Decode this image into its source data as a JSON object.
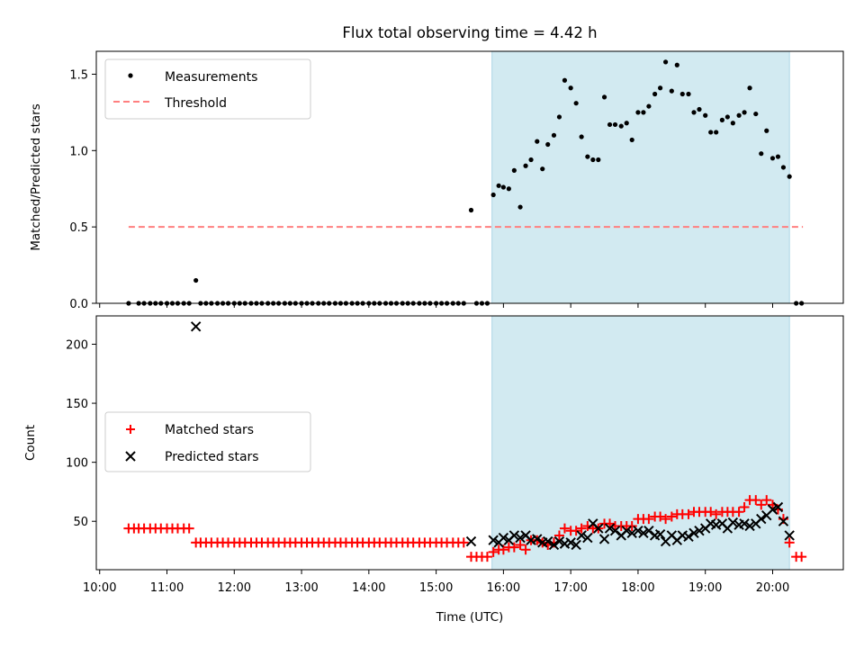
{
  "chart_data": [
    {
      "type": "scatter",
      "title": "Flux total observing time = 4.42 h",
      "ylabel": "Matched/Predicted stars",
      "ylim": [
        0,
        1.65
      ],
      "yticks": [
        0.0,
        0.5,
        1.0,
        1.5
      ],
      "ytick_labels": [
        "0.0",
        "0.5",
        "1.0",
        "1.5"
      ],
      "xlim_hours": [
        9.95,
        21.05
      ],
      "xticks_hours": [
        10,
        11,
        12,
        13,
        14,
        15,
        16,
        17,
        18,
        19,
        20
      ],
      "observing_window_hours": [
        15.83,
        20.25
      ],
      "threshold": {
        "label": "Threshold",
        "value": 0.5,
        "x_range_hours": [
          10.43,
          20.45
        ],
        "color": "#ff7f7f"
      },
      "measurement_color": "#000000",
      "shade_color": "#add8e6",
      "legend": [
        "Measurements",
        "Threshold"
      ],
      "legend_loc": "upper-left",
      "measurements": {
        "x": [
          10.43,
          10.58,
          10.66,
          10.75,
          10.83,
          10.91,
          11.0,
          11.08,
          11.16,
          11.25,
          11.33,
          11.43,
          11.5,
          11.58,
          11.66,
          11.75,
          11.83,
          11.91,
          12.0,
          12.08,
          12.16,
          12.25,
          12.33,
          12.41,
          12.5,
          12.58,
          12.66,
          12.75,
          12.83,
          12.91,
          13.0,
          13.08,
          13.16,
          13.25,
          13.33,
          13.41,
          13.5,
          13.58,
          13.66,
          13.75,
          13.83,
          13.91,
          14.0,
          14.08,
          14.16,
          14.25,
          14.33,
          14.41,
          14.5,
          14.58,
          14.66,
          14.75,
          14.83,
          14.91,
          15.0,
          15.08,
          15.16,
          15.25,
          15.33,
          15.41,
          15.52,
          15.6,
          15.68,
          15.76,
          15.85,
          15.93,
          16.0,
          16.08,
          16.16,
          16.25,
          16.33,
          16.41,
          16.5,
          16.58,
          16.66,
          16.75,
          16.83,
          16.91,
          17.0,
          17.08,
          17.16,
          17.25,
          17.33,
          17.41,
          17.5,
          17.58,
          17.66,
          17.75,
          17.83,
          17.91,
          18.0,
          18.08,
          18.16,
          18.25,
          18.33,
          18.41,
          18.5,
          18.58,
          18.66,
          18.75,
          18.83,
          18.91,
          19.0,
          19.08,
          19.16,
          19.25,
          19.33,
          19.41,
          19.5,
          19.58,
          19.66,
          19.75,
          19.83,
          19.91,
          20.0,
          20.08,
          20.16,
          20.25,
          20.35,
          20.43
        ],
        "y": [
          0,
          0,
          0,
          0,
          0,
          0,
          0,
          0,
          0,
          0,
          0,
          0.15,
          0,
          0,
          0,
          0,
          0,
          0,
          0,
          0,
          0,
          0,
          0,
          0,
          0,
          0,
          0,
          0,
          0,
          0,
          0,
          0,
          0,
          0,
          0,
          0,
          0,
          0,
          0,
          0,
          0,
          0,
          0,
          0,
          0,
          0,
          0,
          0,
          0,
          0,
          0,
          0,
          0,
          0,
          0,
          0,
          0,
          0,
          0,
          0,
          0.61,
          0,
          0,
          0,
          0.71,
          0.77,
          0.76,
          0.75,
          0.87,
          0.63,
          0.9,
          0.94,
          1.06,
          0.88,
          1.04,
          1.1,
          1.22,
          1.46,
          1.41,
          1.31,
          1.09,
          0.96,
          0.94,
          0.94,
          1.35,
          1.17,
          1.17,
          1.16,
          1.18,
          1.07,
          1.25,
          1.25,
          1.29,
          1.37,
          1.41,
          1.58,
          1.39,
          1.56,
          1.37,
          1.37,
          1.25,
          1.27,
          1.23,
          1.12,
          1.12,
          1.2,
          1.22,
          1.18,
          1.23,
          1.25,
          1.41,
          1.24,
          0.98,
          1.13,
          0.95,
          0.96,
          0.89,
          0.83,
          0,
          0
        ]
      }
    },
    {
      "type": "scatter",
      "xlabel": "Time (UTC)",
      "ylabel": "Count",
      "ylim": [
        9,
        224
      ],
      "yticks": [
        50,
        100,
        150,
        200
      ],
      "ytick_labels": [
        "50",
        "100",
        "150",
        "200"
      ],
      "xlim_hours": [
        9.95,
        21.05
      ],
      "xticks_hours": [
        10,
        11,
        12,
        13,
        14,
        15,
        16,
        17,
        18,
        19,
        20
      ],
      "xtick_labels": [
        "10:00",
        "11:00",
        "12:00",
        "13:00",
        "14:00",
        "15:00",
        "16:00",
        "17:00",
        "18:00",
        "19:00",
        "20:00"
      ],
      "observing_window_hours": [
        15.83,
        20.25
      ],
      "legend": [
        "Matched stars",
        "Predicted stars"
      ],
      "legend_loc": "center-left",
      "series": [
        {
          "name": "Matched stars",
          "marker": "+",
          "color": "#ff0000",
          "x": [
            10.43,
            10.51,
            10.58,
            10.66,
            10.75,
            10.83,
            10.91,
            11.0,
            11.08,
            11.16,
            11.25,
            11.33,
            11.43,
            11.5,
            11.58,
            11.66,
            11.75,
            11.83,
            11.91,
            12.0,
            12.08,
            12.16,
            12.25,
            12.33,
            12.41,
            12.5,
            12.58,
            12.66,
            12.75,
            12.83,
            12.91,
            13.0,
            13.08,
            13.16,
            13.25,
            13.33,
            13.41,
            13.5,
            13.58,
            13.66,
            13.75,
            13.83,
            13.91,
            14.0,
            14.08,
            14.16,
            14.25,
            14.33,
            14.41,
            14.5,
            14.58,
            14.66,
            14.75,
            14.83,
            14.91,
            15.0,
            15.08,
            15.16,
            15.25,
            15.33,
            15.41,
            15.52,
            15.6,
            15.68,
            15.76,
            15.85,
            15.93,
            16.0,
            16.08,
            16.16,
            16.25,
            16.33,
            16.41,
            16.5,
            16.58,
            16.66,
            16.75,
            16.83,
            16.91,
            17.0,
            17.08,
            17.16,
            17.25,
            17.33,
            17.41,
            17.5,
            17.58,
            17.66,
            17.75,
            17.83,
            17.91,
            18.0,
            18.08,
            18.16,
            18.25,
            18.33,
            18.41,
            18.5,
            18.58,
            18.66,
            18.75,
            18.83,
            18.91,
            19.0,
            19.08,
            19.16,
            19.25,
            19.33,
            19.41,
            19.5,
            19.58,
            19.66,
            19.75,
            19.83,
            19.91,
            20.0,
            20.08,
            20.16,
            20.25,
            20.35,
            20.43
          ],
          "y": [
            44,
            44,
            44,
            44,
            44,
            44,
            44,
            44,
            44,
            44,
            44,
            44,
            32,
            32,
            32,
            32,
            32,
            32,
            32,
            32,
            32,
            32,
            32,
            32,
            32,
            32,
            32,
            32,
            32,
            32,
            32,
            32,
            32,
            32,
            32,
            32,
            32,
            32,
            32,
            32,
            32,
            32,
            32,
            32,
            32,
            32,
            32,
            32,
            32,
            32,
            32,
            32,
            32,
            32,
            32,
            32,
            32,
            32,
            32,
            32,
            32,
            20,
            20,
            20,
            20,
            24,
            26,
            26,
            28,
            28,
            30,
            26,
            34,
            34,
            32,
            30,
            32,
            38,
            44,
            42,
            42,
            44,
            46,
            44,
            44,
            48,
            48,
            46,
            46,
            46,
            46,
            52,
            52,
            52,
            54,
            54,
            52,
            54,
            56,
            56,
            56,
            58,
            58,
            58,
            58,
            56,
            58,
            58,
            58,
            58,
            62,
            68,
            68,
            64,
            68,
            64,
            60,
            52,
            32,
            20,
            20
          ]
        },
        {
          "name": "Predicted stars",
          "marker": "x",
          "color": "#000000",
          "x": [
            11.43,
            15.52,
            15.85,
            15.93,
            16.0,
            16.08,
            16.16,
            16.25,
            16.33,
            16.41,
            16.5,
            16.58,
            16.66,
            16.75,
            16.83,
            16.91,
            17.0,
            17.08,
            17.16,
            17.25,
            17.33,
            17.41,
            17.5,
            17.58,
            17.66,
            17.75,
            17.83,
            17.91,
            18.0,
            18.08,
            18.16,
            18.25,
            18.33,
            18.41,
            18.5,
            18.58,
            18.66,
            18.75,
            18.83,
            18.91,
            19.0,
            19.08,
            19.16,
            19.25,
            19.33,
            19.41,
            19.5,
            19.58,
            19.66,
            19.75,
            19.83,
            19.91,
            20.0,
            20.08,
            20.16,
            20.25
          ],
          "y": [
            215,
            33,
            34,
            32,
            36,
            34,
            38,
            36,
            38,
            34,
            35,
            32,
            33,
            30,
            33,
            31,
            32,
            30,
            38,
            36,
            48,
            44,
            35,
            44,
            42,
            38,
            42,
            40,
            42,
            40,
            42,
            38,
            39,
            33,
            38,
            34,
            38,
            37,
            40,
            42,
            44,
            48,
            47,
            48,
            44,
            49,
            47,
            48,
            46,
            48,
            52,
            55,
            60,
            62,
            50,
            38
          ]
        }
      ]
    }
  ]
}
